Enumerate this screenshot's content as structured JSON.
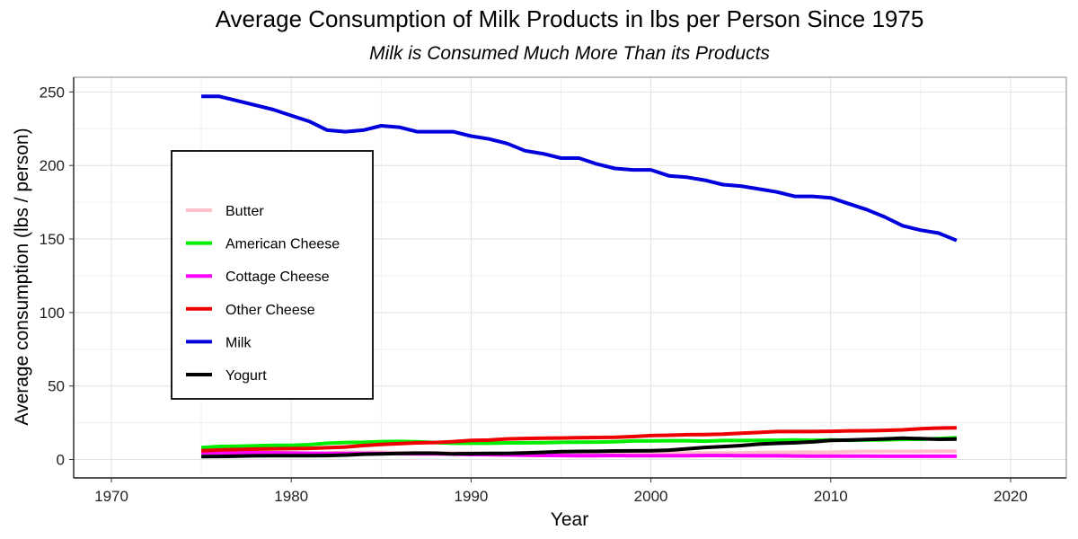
{
  "chart_data": {
    "type": "line",
    "title": "Average Consumption of Milk Products in lbs per Person Since 1975",
    "subtitle": "Milk is Consumed Much More Than its Products",
    "xlabel": "Year",
    "ylabel": "Average consumption (lbs / person)",
    "xlim": [
      1967.9,
      2023.1
    ],
    "ylim": [
      -12.5,
      260
    ],
    "x_ticks": [
      1970,
      1980,
      1990,
      2000,
      2010,
      2020
    ],
    "y_ticks": [
      0,
      50,
      100,
      150,
      200,
      250
    ],
    "grid": true,
    "legend_position": "left",
    "x": [
      1975,
      1976,
      1977,
      1978,
      1979,
      1980,
      1981,
      1982,
      1983,
      1984,
      1985,
      1986,
      1987,
      1988,
      1989,
      1990,
      1991,
      1992,
      1993,
      1994,
      1995,
      1996,
      1997,
      1998,
      1999,
      2000,
      2001,
      2002,
      2003,
      2004,
      2005,
      2006,
      2007,
      2008,
      2009,
      2010,
      2011,
      2012,
      2013,
      2014,
      2015,
      2016,
      2017
    ],
    "series": [
      {
        "name": "Butter",
        "color": "#ffc0cb",
        "values": [
          4.7,
          4.3,
          4.3,
          4.5,
          4.5,
          4.5,
          4.2,
          4.4,
          4.9,
          4.9,
          4.9,
          4.6,
          4.7,
          4.5,
          4.4,
          4.4,
          4.2,
          4.2,
          4.7,
          4.8,
          4.5,
          4.3,
          4.2,
          4.3,
          4.7,
          4.5,
          4.3,
          4.4,
          4.5,
          4.5,
          4.5,
          4.7,
          4.7,
          5.0,
          5.0,
          4.9,
          5.4,
          5.5,
          5.5,
          5.5,
          5.6,
          5.7,
          5.7
        ]
      },
      {
        "name": "American Cheese",
        "color": "#00ee00",
        "values": [
          8.1,
          8.9,
          9.0,
          9.4,
          9.6,
          9.6,
          10.1,
          11.1,
          11.6,
          11.7,
          12.2,
          12.3,
          12.1,
          11.6,
          11.1,
          11.1,
          11.1,
          11.3,
          11.4,
          11.5,
          11.7,
          11.8,
          11.9,
          12.1,
          12.6,
          12.7,
          12.8,
          12.8,
          12.5,
          12.9,
          12.9,
          13.0,
          13.1,
          13.3,
          13.1,
          13.3,
          13.1,
          13.3,
          13.4,
          13.7,
          13.8,
          14.2,
          14.8
        ]
      },
      {
        "name": "Cottage Cheese",
        "color": "#ff00ff",
        "values": [
          4.6,
          4.6,
          4.6,
          4.7,
          4.6,
          4.5,
          4.3,
          4.2,
          4.1,
          4.1,
          4.1,
          4.0,
          3.9,
          3.9,
          3.7,
          3.4,
          3.3,
          3.1,
          2.9,
          2.8,
          2.7,
          2.6,
          2.6,
          2.7,
          2.6,
          2.6,
          2.6,
          2.6,
          2.7,
          2.7,
          2.6,
          2.5,
          2.5,
          2.4,
          2.3,
          2.3,
          2.3,
          2.3,
          2.2,
          2.2,
          2.2,
          2.2,
          2.2
        ]
      },
      {
        "name": "Other Cheese",
        "color": "#ee0000",
        "values": [
          6.0,
          6.5,
          6.8,
          7.1,
          7.3,
          7.4,
          7.6,
          8.0,
          8.5,
          9.5,
          10.2,
          10.8,
          11.3,
          11.6,
          12.2,
          13.0,
          13.2,
          14.0,
          14.3,
          14.5,
          14.6,
          14.9,
          15.0,
          15.1,
          15.6,
          16.3,
          16.5,
          16.9,
          17.0,
          17.3,
          17.9,
          18.4,
          19.0,
          19.0,
          19.0,
          19.2,
          19.5,
          19.6,
          19.8,
          20.2,
          20.9,
          21.4,
          21.6
        ]
      },
      {
        "name": "Milk",
        "color": "#0000dd",
        "values": [
          247,
          247,
          244,
          241,
          238,
          234,
          230,
          224,
          223,
          224,
          227,
          226,
          223,
          223,
          223,
          220,
          218,
          215,
          210,
          208,
          205,
          205,
          201,
          198,
          197,
          197,
          193,
          192,
          190,
          187,
          186,
          184,
          182,
          179,
          179,
          178,
          174,
          170,
          165,
          159,
          156,
          154,
          149
        ]
      },
      {
        "name": "Yogurt",
        "color": "#000000",
        "values": [
          2.0,
          2.1,
          2.3,
          2.5,
          2.6,
          2.6,
          2.6,
          2.7,
          3.0,
          3.6,
          3.9,
          4.1,
          4.3,
          4.3,
          3.9,
          4.0,
          4.2,
          4.2,
          4.5,
          4.9,
          5.4,
          5.5,
          5.6,
          5.8,
          5.9,
          6.0,
          6.4,
          7.3,
          8.2,
          8.8,
          9.5,
          10.5,
          11.0,
          11.4,
          12.0,
          13.0,
          13.2,
          13.6,
          14.0,
          14.5,
          14.2,
          13.8,
          13.9
        ]
      }
    ]
  }
}
